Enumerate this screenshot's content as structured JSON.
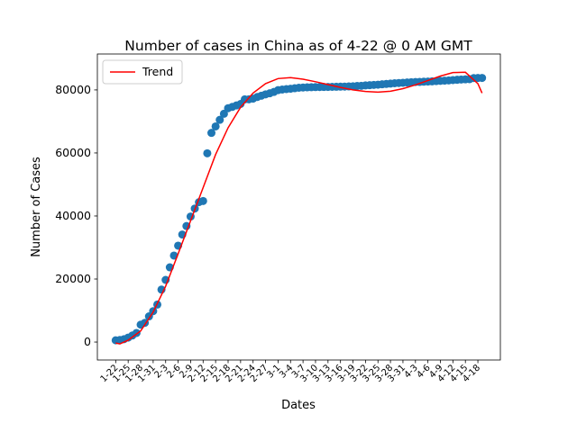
{
  "chart_data": {
    "type": "scatter",
    "title": "Number of cases in China as of 4-22 @ 0 AM GMT",
    "x_label": "Dates",
    "y_label": "Number of Cases",
    "categories": [
      "1-22",
      null,
      null,
      "1-25",
      null,
      null,
      "1-28",
      null,
      null,
      "1-31",
      null,
      null,
      "2-3",
      null,
      null,
      "2-6",
      null,
      null,
      "2-9",
      null,
      null,
      "2-12",
      null,
      null,
      "2-15",
      null,
      null,
      "2-18",
      null,
      null,
      "2-21",
      null,
      null,
      "2-24",
      null,
      null,
      "2-27",
      null,
      null,
      "3-1",
      null,
      null,
      "3-4",
      null,
      null,
      "3-7",
      null,
      null,
      "3-10",
      null,
      null,
      "3-13",
      null,
      null,
      "3-16",
      null,
      null,
      "3-19",
      null,
      null,
      "3-22",
      null,
      null,
      "3-25",
      null,
      null,
      "3-28",
      null,
      null,
      "3-31",
      null,
      null,
      "4-3",
      null,
      null,
      "4-6",
      null,
      null,
      "4-9",
      null,
      null,
      "4-12",
      null,
      null,
      "4-15",
      null,
      null,
      "4-18",
      null
    ],
    "values": [
      548,
      643,
      920,
      1406,
      2075,
      2877,
      5509,
      6087,
      8141,
      9802,
      11891,
      16630,
      19716,
      23707,
      27440,
      30587,
      34110,
      36814,
      39829,
      42354,
      44386,
      44759,
      59895,
      66358,
      68413,
      70513,
      72434,
      74211,
      74619,
      75077,
      75550,
      77001,
      77022,
      77241,
      77754,
      78166,
      78600,
      78928,
      79356,
      79932,
      80136,
      80261,
      80386,
      80537,
      80690,
      80770,
      80823,
      80860,
      80887,
      80921,
      80932,
      80945,
      80977,
      81003,
      81033,
      81058,
      81102,
      81156,
      81250,
      81305,
      81435,
      81498,
      81591,
      81661,
      81782,
      81897,
      81999,
      82122,
      82198,
      82279,
      82361,
      82432,
      82511,
      82543,
      82602,
      82665,
      82718,
      82809,
      82883,
      82941,
      83014,
      83134,
      83213,
      83306,
      83356,
      83403,
      83760,
      83787,
      83805
    ],
    "color": "#1f77b4",
    "series": [
      {
        "name": "Trend",
        "color": "#ff0000",
        "x": [
          0,
          1,
          3,
          6,
          9,
          12,
          15,
          18,
          21,
          24,
          27,
          30,
          33,
          36,
          39,
          42,
          45,
          48,
          51,
          54,
          57,
          60,
          63,
          66,
          69,
          72,
          75,
          78,
          81,
          84,
          87,
          88
        ],
        "values": [
          -300,
          -600,
          600,
          3500,
          9500,
          17700,
          28000,
          38500,
          49000,
          59500,
          68000,
          74500,
          79000,
          82000,
          83600,
          83900,
          83400,
          82600,
          81700,
          80800,
          80000,
          79500,
          79300,
          79600,
          80400,
          81600,
          83000,
          84400,
          85500,
          85600,
          82000,
          79000
        ]
      }
    ],
    "ylim": [
      -5700,
      91400
    ],
    "yticks": [
      0,
      20000,
      40000,
      60000,
      80000
    ],
    "legend": "upper left"
  }
}
